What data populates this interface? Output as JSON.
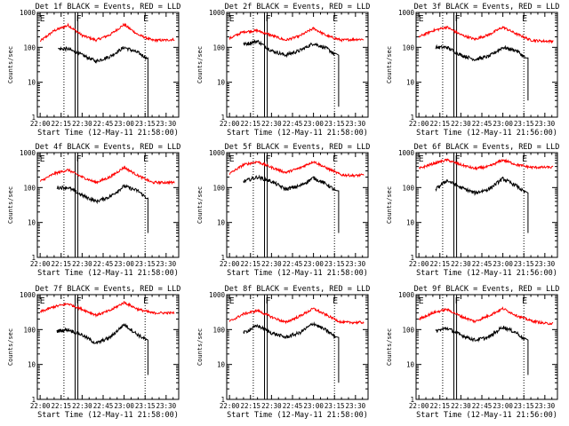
{
  "figure": {
    "background": "#ffffff",
    "axis_color": "#000000",
    "events_color": "#000000",
    "lld_color": "#ff0000"
  },
  "chart_data": [
    {
      "type": "line",
      "title": "Det 1f BLACK = Events, RED = LLD",
      "xlabel": "Start Time (12-May-11 21:58:00)",
      "ylabel": "Counts/sec",
      "y_scale": "log",
      "ylim": [
        1,
        1000
      ],
      "y_ticks": [
        "1",
        "10",
        "100",
        "1000"
      ],
      "x_ticks": [
        "22:00",
        "22:15",
        "22:30",
        "22:45",
        "23:00",
        "23:15",
        "23:30"
      ],
      "xlim": [
        "21:58",
        "23:39"
      ],
      "grid": false,
      "vertical_markers": {
        "dotted": [
          "22:17",
          "23:15"
        ],
        "solid": [
          "22:25",
          "22:26"
        ]
      },
      "letter_markers": [
        {
          "label": "E",
          "time": "21:59"
        },
        {
          "label": "F",
          "time": "22:25"
        },
        {
          "label": "E",
          "time": "23:13"
        }
      ],
      "series": [
        {
          "name": "LLD",
          "x": [
            "22:00",
            "22:10",
            "22:20",
            "22:30",
            "22:40",
            "22:50",
            "23:00",
            "23:10",
            "23:20",
            "23:30",
            "23:36"
          ],
          "values": [
            150,
            300,
            430,
            220,
            160,
            230,
            450,
            230,
            160,
            160,
            170
          ]
        },
        {
          "name": "Events",
          "x": [
            "22:13",
            "22:20",
            "22:30",
            "22:40",
            "22:50",
            "23:00",
            "23:10",
            "23:16",
            "23:17"
          ],
          "values": [
            90,
            90,
            60,
            40,
            55,
            100,
            70,
            50,
            1
          ]
        }
      ]
    },
    {
      "type": "line",
      "title": "Det 2f BLACK = Events, RED = LLD",
      "xlabel": "Start Time (12-May-11 21:58:00)",
      "ylabel": "Counts/sec",
      "y_scale": "log",
      "ylim": [
        1,
        1000
      ],
      "y_ticks": [
        "1",
        "10",
        "100",
        "1000"
      ],
      "x_ticks": [
        "22:00",
        "22:15",
        "22:30",
        "22:45",
        "23:00",
        "23:15",
        "23:30"
      ],
      "xlim": [
        "21:58",
        "23:39"
      ],
      "grid": false,
      "vertical_markers": {
        "dotted": [
          "22:17",
          "23:15"
        ],
        "solid": [
          "22:25",
          "22:26"
        ]
      },
      "letter_markers": [
        {
          "label": "E",
          "time": "21:59"
        },
        {
          "label": "F",
          "time": "22:25"
        },
        {
          "label": "E",
          "time": "23:13"
        }
      ],
      "series": [
        {
          "name": "LLD",
          "x": [
            "22:00",
            "22:10",
            "22:20",
            "22:30",
            "22:40",
            "22:50",
            "23:00",
            "23:10",
            "23:20",
            "23:30",
            "23:36"
          ],
          "values": [
            180,
            280,
            300,
            220,
            160,
            210,
            350,
            210,
            160,
            170,
            170
          ]
        },
        {
          "name": "Events",
          "x": [
            "22:10",
            "22:20",
            "22:30",
            "22:40",
            "22:50",
            "23:00",
            "23:10",
            "23:16",
            "23:18"
          ],
          "values": [
            120,
            150,
            80,
            60,
            80,
            130,
            90,
            60,
            2
          ]
        }
      ]
    },
    {
      "type": "line",
      "title": "Det 3f BLACK = Events, RED = LLD",
      "xlabel": "Start Time (12-May-11 21:56:00)",
      "ylabel": "Counts/sec",
      "y_scale": "log",
      "ylim": [
        1,
        1000
      ],
      "y_ticks": [
        "1",
        "10",
        "100",
        "1000"
      ],
      "x_ticks": [
        "22:00",
        "22:15",
        "22:30",
        "22:45",
        "23:00",
        "23:15",
        "23:30"
      ],
      "xlim": [
        "21:58",
        "23:39"
      ],
      "grid": false,
      "vertical_markers": {
        "dotted": [
          "22:17",
          "23:15"
        ],
        "solid": [
          "22:25",
          "22:26"
        ]
      },
      "letter_markers": [
        {
          "label": "E",
          "time": "21:59"
        },
        {
          "label": "F",
          "time": "22:25"
        },
        {
          "label": "E",
          "time": "23:13"
        }
      ],
      "series": [
        {
          "name": "LLD",
          "x": [
            "22:00",
            "22:10",
            "22:20",
            "22:30",
            "22:40",
            "22:50",
            "23:00",
            "23:10",
            "23:20",
            "23:30",
            "23:36"
          ],
          "values": [
            200,
            300,
            380,
            230,
            170,
            230,
            380,
            240,
            160,
            150,
            150
          ]
        },
        {
          "name": "Events",
          "x": [
            "22:12",
            "22:20",
            "22:30",
            "22:40",
            "22:50",
            "23:00",
            "23:10",
            "23:16",
            "23:18"
          ],
          "values": [
            100,
            100,
            60,
            45,
            55,
            100,
            80,
            50,
            3
          ]
        }
      ]
    },
    {
      "type": "line",
      "title": "Det 4f BLACK = Events, RED = LLD",
      "xlabel": "Start Time (12-May-11 21:58:00)",
      "ylabel": "Counts/sec",
      "y_scale": "log",
      "ylim": [
        1,
        1000
      ],
      "y_ticks": [
        "1",
        "10",
        "100",
        "1000"
      ],
      "x_ticks": [
        "22:00",
        "22:15",
        "22:30",
        "22:45",
        "23:00",
        "23:15",
        "23:30"
      ],
      "xlim": [
        "21:58",
        "23:39"
      ],
      "grid": false,
      "vertical_markers": {
        "dotted": [
          "22:17",
          "23:15"
        ],
        "solid": [
          "22:25",
          "22:26"
        ]
      },
      "letter_markers": [
        {
          "label": "E",
          "time": "21:59"
        },
        {
          "label": "F",
          "time": "22:25"
        },
        {
          "label": "E",
          "time": "23:13"
        }
      ],
      "series": [
        {
          "name": "LLD",
          "x": [
            "22:00",
            "22:10",
            "22:20",
            "22:30",
            "22:40",
            "22:50",
            "23:00",
            "23:10",
            "23:20",
            "23:30",
            "23:36"
          ],
          "values": [
            150,
            250,
            320,
            200,
            140,
            200,
            380,
            220,
            140,
            140,
            140
          ]
        },
        {
          "name": "Events",
          "x": [
            "22:12",
            "22:20",
            "22:30",
            "22:40",
            "22:50",
            "23:00",
            "23:10",
            "23:16",
            "23:17"
          ],
          "values": [
            100,
            100,
            60,
            40,
            55,
            110,
            80,
            50,
            5
          ]
        }
      ]
    },
    {
      "type": "line",
      "title": "Det 5f BLACK = Events, RED = LLD",
      "xlabel": "Start Time (12-May-11 21:58:00)",
      "ylabel": "Counts/sec",
      "y_scale": "log",
      "ylim": [
        1,
        1000
      ],
      "y_ticks": [
        "1",
        "10",
        "100",
        "1000"
      ],
      "x_ticks": [
        "22:00",
        "22:15",
        "22:30",
        "22:45",
        "23:00",
        "23:15",
        "23:30"
      ],
      "xlim": [
        "21:58",
        "23:39"
      ],
      "grid": false,
      "vertical_markers": {
        "dotted": [
          "22:17",
          "23:15"
        ],
        "solid": [
          "22:25",
          "22:26"
        ]
      },
      "letter_markers": [
        {
          "label": "E",
          "time": "21:59"
        },
        {
          "label": "F",
          "time": "22:25"
        },
        {
          "label": "E",
          "time": "23:13"
        }
      ],
      "series": [
        {
          "name": "LLD",
          "x": [
            "22:00",
            "22:10",
            "22:20",
            "22:30",
            "22:40",
            "22:50",
            "23:00",
            "23:10",
            "23:20",
            "23:30",
            "23:36"
          ],
          "values": [
            250,
            450,
            550,
            380,
            270,
            360,
            560,
            350,
            230,
            220,
            230
          ]
        },
        {
          "name": "Events",
          "x": [
            "22:10",
            "22:20",
            "22:30",
            "22:40",
            "22:50",
            "23:00",
            "23:10",
            "23:16",
            "23:18"
          ],
          "values": [
            150,
            200,
            150,
            90,
            110,
            190,
            120,
            80,
            5
          ]
        }
      ]
    },
    {
      "type": "line",
      "title": "Det 6f BLACK = Events, RED = LLD",
      "xlabel": "Start Time (12-May-11 21:56:00)",
      "ylabel": "Counts/sec",
      "y_scale": "log",
      "ylim": [
        1,
        1000
      ],
      "y_ticks": [
        "1",
        "10",
        "100",
        "1000"
      ],
      "x_ticks": [
        "22:00",
        "22:15",
        "22:30",
        "22:45",
        "23:00",
        "23:15",
        "23:30"
      ],
      "xlim": [
        "21:58",
        "23:39"
      ],
      "grid": false,
      "vertical_markers": {
        "dotted": [
          "22:17",
          "23:15"
        ],
        "solid": [
          "22:25",
          "22:26"
        ]
      },
      "letter_markers": [
        {
          "label": "E",
          "time": "21:59"
        },
        {
          "label": "F",
          "time": "22:25"
        },
        {
          "label": "E",
          "time": "23:13"
        }
      ],
      "series": [
        {
          "name": "LLD",
          "x": [
            "22:00",
            "22:10",
            "22:20",
            "22:30",
            "22:40",
            "22:50",
            "23:00",
            "23:10",
            "23:20",
            "23:30",
            "23:36"
          ],
          "values": [
            350,
            480,
            620,
            450,
            350,
            400,
            620,
            450,
            380,
            380,
            380
          ]
        },
        {
          "name": "Events",
          "x": [
            "22:12",
            "22:20",
            "22:30",
            "22:40",
            "22:50",
            "23:00",
            "23:10",
            "23:16",
            "23:18"
          ],
          "values": [
            90,
            160,
            100,
            70,
            90,
            180,
            110,
            70,
            5
          ]
        }
      ]
    },
    {
      "type": "line",
      "title": "Det 7f BLACK = Events, RED = LLD",
      "xlabel": "Start Time (12-May-11 21:58:00)",
      "ylabel": "Counts/sec",
      "y_scale": "log",
      "ylim": [
        1,
        1000
      ],
      "y_ticks": [
        "1",
        "10",
        "100",
        "1000"
      ],
      "x_ticks": [
        "22:00",
        "22:15",
        "22:30",
        "22:45",
        "23:00",
        "23:15",
        "23:30"
      ],
      "xlim": [
        "21:58",
        "23:39"
      ],
      "grid": false,
      "vertical_markers": {
        "dotted": [
          "22:17",
          "23:15"
        ],
        "solid": [
          "22:25",
          "22:26"
        ]
      },
      "letter_markers": [
        {
          "label": "E",
          "time": "21:59"
        },
        {
          "label": "F",
          "time": "22:25"
        },
        {
          "label": "E",
          "time": "23:13"
        }
      ],
      "series": [
        {
          "name": "LLD",
          "x": [
            "22:00",
            "22:10",
            "22:20",
            "22:30",
            "22:40",
            "22:50",
            "23:00",
            "23:10",
            "23:20",
            "23:30",
            "23:36"
          ],
          "values": [
            320,
            450,
            550,
            380,
            260,
            350,
            600,
            380,
            300,
            300,
            300
          ]
        },
        {
          "name": "Events",
          "x": [
            "22:12",
            "22:20",
            "22:30",
            "22:40",
            "22:50",
            "23:00",
            "23:10",
            "23:16",
            "23:17"
          ],
          "values": [
            90,
            100,
            70,
            40,
            60,
            140,
            70,
            50,
            5
          ]
        }
      ]
    },
    {
      "type": "line",
      "title": "Det 8f BLACK = Events, RED = LLD",
      "xlabel": "Start Time (12-May-11 21:58:00)",
      "ylabel": "Counts/sec",
      "y_scale": "log",
      "ylim": [
        1,
        1000
      ],
      "y_ticks": [
        "1",
        "10",
        "100",
        "1000"
      ],
      "x_ticks": [
        "22:00",
        "22:15",
        "22:30",
        "22:45",
        "23:00",
        "23:15",
        "23:30"
      ],
      "xlim": [
        "21:58",
        "23:39"
      ],
      "grid": false,
      "vertical_markers": {
        "dotted": [
          "22:17",
          "23:15"
        ],
        "solid": [
          "22:25",
          "22:26"
        ]
      },
      "letter_markers": [
        {
          "label": "E",
          "time": "21:59"
        },
        {
          "label": "F",
          "time": "22:25"
        },
        {
          "label": "E",
          "time": "23:13"
        }
      ],
      "series": [
        {
          "name": "LLD",
          "x": [
            "22:00",
            "22:10",
            "22:20",
            "22:30",
            "22:40",
            "22:50",
            "23:00",
            "23:10",
            "23:20",
            "23:30",
            "23:36"
          ],
          "values": [
            170,
            280,
            350,
            230,
            160,
            240,
            400,
            250,
            160,
            160,
            160
          ]
        },
        {
          "name": "Events",
          "x": [
            "22:10",
            "22:20",
            "22:30",
            "22:40",
            "22:50",
            "23:00",
            "23:10",
            "23:16",
            "23:18"
          ],
          "values": [
            80,
            130,
            80,
            60,
            80,
            150,
            90,
            60,
            3
          ]
        }
      ]
    },
    {
      "type": "line",
      "title": "Det 9f BLACK = Events, RED = LLD",
      "xlabel": "Start Time (12-May-11 21:56:00)",
      "ylabel": "Counts/sec",
      "y_scale": "log",
      "ylim": [
        1,
        1000
      ],
      "y_ticks": [
        "1",
        "10",
        "100",
        "1000"
      ],
      "x_ticks": [
        "22:00",
        "22:15",
        "22:30",
        "22:45",
        "23:00",
        "23:15",
        "23:30"
      ],
      "xlim": [
        "21:58",
        "23:39"
      ],
      "grid": false,
      "vertical_markers": {
        "dotted": [
          "22:17",
          "23:15"
        ],
        "solid": [
          "22:25",
          "22:26"
        ]
      },
      "letter_markers": [
        {
          "label": "E",
          "time": "21:59"
        },
        {
          "label": "F",
          "time": "22:25"
        },
        {
          "label": "E",
          "time": "23:13"
        }
      ],
      "series": [
        {
          "name": "LLD",
          "x": [
            "22:00",
            "22:10",
            "22:20",
            "22:30",
            "22:40",
            "22:50",
            "23:00",
            "23:10",
            "23:20",
            "23:30",
            "23:36"
          ],
          "values": [
            200,
            300,
            380,
            240,
            170,
            250,
            400,
            250,
            180,
            150,
            150
          ]
        },
        {
          "name": "Events",
          "x": [
            "22:12",
            "22:20",
            "22:30",
            "22:40",
            "22:50",
            "23:00",
            "23:10",
            "23:16",
            "23:18"
          ],
          "values": [
            90,
            110,
            70,
            50,
            60,
            120,
            80,
            50,
            5
          ]
        }
      ]
    }
  ]
}
